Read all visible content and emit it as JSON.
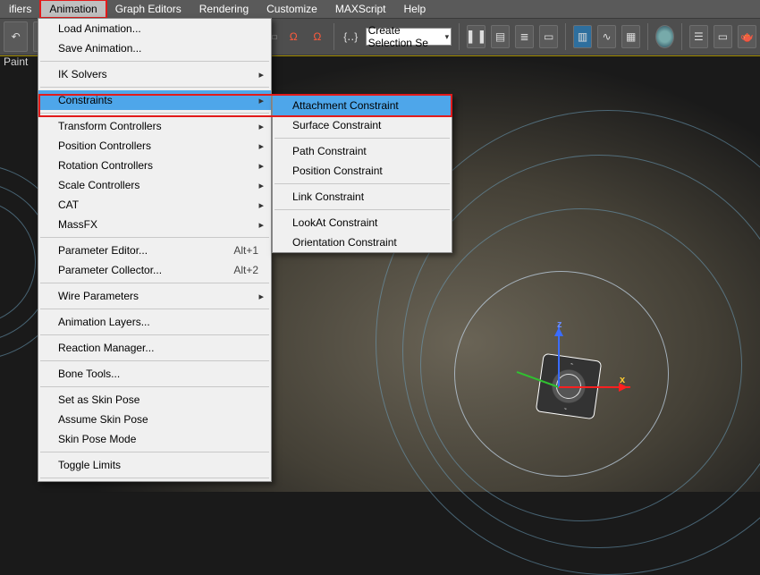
{
  "colors": {
    "highlight": "#4ea6ea",
    "annotation": "#e21b1b",
    "menubar": "#5a5a5a",
    "toolbar": "#4e4e4e",
    "menu_bg": "#f0f0f0"
  },
  "menubar": {
    "items": [
      {
        "label": "ifiers",
        "active": false
      },
      {
        "label": "Animation",
        "active": true
      },
      {
        "label": "Graph Editors",
        "active": false
      },
      {
        "label": "Rendering",
        "active": false
      },
      {
        "label": "Customize",
        "active": false
      },
      {
        "label": "MAXScript",
        "active": false
      },
      {
        "label": "Help",
        "active": false
      }
    ]
  },
  "toolbar": {
    "paint_label": "Paint",
    "selection_set_placeholder": "Create Selection Se"
  },
  "menu": {
    "items": [
      {
        "label": "Load Animation..."
      },
      {
        "label": "Save Animation..."
      },
      {
        "hr": true
      },
      {
        "label": "IK Solvers",
        "sub": true
      },
      {
        "hr": true
      },
      {
        "label": "Constraints",
        "sub": true,
        "hover": true
      },
      {
        "hr": true
      },
      {
        "label": "Transform Controllers",
        "sub": true
      },
      {
        "label": "Position Controllers",
        "sub": true
      },
      {
        "label": "Rotation Controllers",
        "sub": true
      },
      {
        "label": "Scale Controllers",
        "sub": true
      },
      {
        "label": "CAT",
        "sub": true
      },
      {
        "label": "MassFX",
        "sub": true
      },
      {
        "hr": true
      },
      {
        "label": "Parameter Editor...",
        "shortcut": "Alt+1"
      },
      {
        "label": "Parameter Collector...",
        "shortcut": "Alt+2"
      },
      {
        "hr": true
      },
      {
        "label": "Wire Parameters",
        "sub": true
      },
      {
        "hr": true
      },
      {
        "label": "Animation Layers..."
      },
      {
        "hr": true
      },
      {
        "label": "Reaction Manager..."
      },
      {
        "hr": true
      },
      {
        "label": "Bone Tools..."
      },
      {
        "hr": true
      },
      {
        "label": "Set as Skin Pose"
      },
      {
        "label": "Assume Skin Pose"
      },
      {
        "label": "Skin Pose Mode"
      },
      {
        "hr": true
      },
      {
        "label": "Toggle Limits"
      },
      {
        "hr": true
      }
    ]
  },
  "submenu": {
    "items": [
      {
        "label": "Attachment Constraint",
        "hover": true
      },
      {
        "label": "Surface Constraint"
      },
      {
        "hr": true
      },
      {
        "label": "Path Constraint"
      },
      {
        "label": "Position Constraint"
      },
      {
        "hr": true
      },
      {
        "label": "Link Constraint"
      },
      {
        "hr": true
      },
      {
        "label": "LookAt Constraint"
      },
      {
        "label": "Orientation Constraint"
      }
    ]
  },
  "gizmo": {
    "z": "z",
    "x": "x"
  }
}
